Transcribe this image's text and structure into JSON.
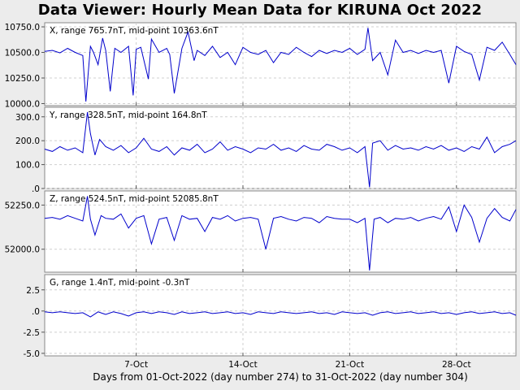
{
  "title": "Data Viewer:  Hourly Mean Data for KIRUNA Oct 2022",
  "xlabel": "Days from 01-Oct-2022 (day number 274) to 31-Oct-2022 (day number 304)",
  "colors": {
    "trace": "#0000cc",
    "background": "#ececec",
    "plot": "#ffffff",
    "grid": "#cfcfcf"
  },
  "chart_data": {
    "type": "line",
    "x_unit": "day of October 2022",
    "x_range": [
      1,
      31.9
    ],
    "x_ticks": [
      {
        "day": 7,
        "label": "7-Oct"
      },
      {
        "day": 14,
        "label": "14-Oct"
      },
      {
        "day": 21,
        "label": "21-Oct"
      },
      {
        "day": 28,
        "label": "28-Oct"
      }
    ],
    "grid": true,
    "panels": [
      {
        "name": "X",
        "label": "X, range 765.7nT, mid-point 10363.6nT",
        "ylim": [
          9980,
          10790
        ],
        "yticks": [
          {
            "v": 10000,
            "label": "10000.0"
          },
          {
            "v": 10250,
            "label": "10250.0"
          },
          {
            "v": 10500,
            "label": "10500.0"
          },
          {
            "v": 10750,
            "label": "10750.0"
          }
        ],
        "x": [
          1,
          1.5,
          2,
          2.5,
          3,
          3.5,
          3.7,
          4,
          4.2,
          4.5,
          4.8,
          5,
          5.3,
          5.6,
          6,
          6.5,
          6.8,
          7,
          7.3,
          7.8,
          8,
          8.5,
          9,
          9.2,
          9.5,
          10,
          10.4,
          10.8,
          11,
          11.5,
          12,
          12.5,
          13,
          13.5,
          14,
          14.5,
          15,
          15.5,
          16,
          16.5,
          17,
          17.5,
          18,
          18.5,
          19,
          19.5,
          20,
          20.5,
          21,
          21.5,
          22,
          22.2,
          22.5,
          23,
          23.5,
          24,
          24.5,
          25,
          25.5,
          26,
          26.5,
          27,
          27.5,
          28,
          28.5,
          29,
          29.5,
          30,
          30.5,
          31,
          31.5,
          31.9
        ],
        "values": [
          10510,
          10520,
          10495,
          10540,
          10500,
          10470,
          10020,
          10560,
          10500,
          10380,
          10640,
          10520,
          10120,
          10540,
          10500,
          10560,
          10080,
          10530,
          10550,
          10240,
          10630,
          10500,
          10540,
          10480,
          10100,
          10540,
          10700,
          10420,
          10520,
          10470,
          10560,
          10450,
          10500,
          10380,
          10550,
          10500,
          10480,
          10520,
          10400,
          10500,
          10480,
          10550,
          10500,
          10460,
          10520,
          10490,
          10520,
          10500,
          10540,
          10480,
          10530,
          10740,
          10420,
          10500,
          10280,
          10620,
          10500,
          10520,
          10490,
          10520,
          10500,
          10520,
          10200,
          10560,
          10510,
          10480,
          10230,
          10550,
          10520,
          10600,
          10480,
          10380
        ]
      },
      {
        "name": "Y",
        "label": "Y, range 328.5nT, mid-point 164.8nT",
        "ylim": [
          0,
          340
        ],
        "yticks": [
          {
            "v": 0,
            "label": ".0"
          },
          {
            "v": 100,
            "label": "100.0"
          },
          {
            "v": 200,
            "label": "200.0"
          },
          {
            "v": 300,
            "label": "300.0"
          }
        ],
        "x": [
          1,
          1.5,
          2,
          2.5,
          3,
          3.5,
          3.8,
          4,
          4.3,
          4.6,
          5,
          5.5,
          6,
          6.5,
          7,
          7.5,
          8,
          8.5,
          9,
          9.5,
          10,
          10.5,
          11,
          11.5,
          12,
          12.5,
          13,
          13.5,
          14,
          14.5,
          15,
          15.5,
          16,
          16.5,
          17,
          17.5,
          18,
          18.5,
          19,
          19.5,
          20,
          20.5,
          21,
          21.5,
          22,
          22.3,
          22.5,
          23,
          23.5,
          24,
          24.5,
          25,
          25.5,
          26,
          26.5,
          27,
          27.5,
          28,
          28.5,
          29,
          29.5,
          30,
          30.5,
          31,
          31.5,
          31.9
        ],
        "values": [
          165,
          155,
          175,
          160,
          170,
          150,
          320,
          230,
          140,
          205,
          175,
          160,
          180,
          150,
          170,
          210,
          165,
          155,
          175,
          140,
          170,
          160,
          185,
          150,
          165,
          195,
          160,
          175,
          165,
          150,
          170,
          165,
          185,
          160,
          170,
          155,
          180,
          165,
          160,
          185,
          175,
          160,
          170,
          150,
          175,
          5,
          190,
          200,
          160,
          180,
          165,
          170,
          160,
          175,
          165,
          180,
          160,
          170,
          155,
          175,
          165,
          215,
          150,
          175,
          185,
          200
        ]
      },
      {
        "name": "Z",
        "label": "Z, range 524.5nT, mid-point 52085.8nT",
        "ylim": [
          51870,
          52330
        ],
        "yticks": [
          {
            "v": 52000,
            "label": "52000.0"
          },
          {
            "v": 52250,
            "label": "52250.0"
          }
        ],
        "x": [
          1,
          1.5,
          2,
          2.5,
          3,
          3.5,
          3.8,
          4,
          4.3,
          4.7,
          5,
          5.5,
          6,
          6.5,
          7,
          7.5,
          8,
          8.5,
          9,
          9.5,
          10,
          10.5,
          11,
          11.5,
          12,
          12.5,
          13,
          13.5,
          14,
          14.5,
          15,
          15.5,
          16,
          16.5,
          17,
          17.5,
          18,
          18.5,
          19,
          19.5,
          20,
          20.5,
          21,
          21.5,
          22,
          22.3,
          22.6,
          23,
          23.5,
          24,
          24.5,
          25,
          25.5,
          26,
          26.5,
          27,
          27.5,
          28,
          28.5,
          29,
          29.5,
          30,
          30.5,
          31,
          31.5,
          31.9
        ],
        "values": [
          52175,
          52180,
          52170,
          52190,
          52175,
          52160,
          52300,
          52170,
          52080,
          52190,
          52175,
          52170,
          52200,
          52120,
          52175,
          52190,
          52030,
          52170,
          52180,
          52050,
          52190,
          52170,
          52175,
          52100,
          52180,
          52170,
          52190,
          52160,
          52175,
          52180,
          52170,
          52000,
          52175,
          52185,
          52170,
          52160,
          52180,
          52175,
          52150,
          52185,
          52175,
          52170,
          52170,
          52150,
          52175,
          51880,
          52170,
          52180,
          52150,
          52175,
          52170,
          52180,
          52160,
          52175,
          52185,
          52170,
          52240,
          52100,
          52250,
          52180,
          52040,
          52175,
          52230,
          52180,
          52160,
          52225
        ]
      },
      {
        "name": "G",
        "label": "G, range 1.4nT, mid-point -0.3nT",
        "ylim": [
          -5.3,
          4.3
        ],
        "yticks": [
          {
            "v": -5,
            "label": "-5.0"
          },
          {
            "v": -2.5,
            "label": "-2.5"
          },
          {
            "v": 0,
            "label": ".0"
          },
          {
            "v": 2.5,
            "label": "2.5"
          }
        ],
        "x": [
          1,
          1.5,
          2,
          2.5,
          3,
          3.5,
          4,
          4.5,
          5,
          5.5,
          6,
          6.5,
          7,
          7.5,
          8,
          8.5,
          9,
          9.5,
          10,
          10.5,
          11,
          11.5,
          12,
          12.5,
          13,
          13.5,
          14,
          14.5,
          15,
          15.5,
          16,
          16.5,
          17,
          17.5,
          18,
          18.5,
          19,
          19.5,
          20,
          20.5,
          21,
          21.5,
          22,
          22.5,
          23,
          23.5,
          24,
          24.5,
          25,
          25.5,
          26,
          26.5,
          27,
          27.5,
          28,
          28.5,
          29,
          29.5,
          30,
          30.5,
          31,
          31.5,
          31.9
        ],
        "values": [
          -0.1,
          -0.2,
          -0.1,
          -0.2,
          -0.3,
          -0.2,
          -0.7,
          -0.1,
          -0.4,
          -0.1,
          -0.3,
          -0.6,
          -0.2,
          -0.1,
          -0.3,
          -0.1,
          -0.2,
          -0.4,
          -0.1,
          -0.3,
          -0.2,
          -0.1,
          -0.3,
          -0.2,
          -0.1,
          -0.3,
          -0.2,
          -0.4,
          -0.1,
          -0.2,
          -0.3,
          -0.1,
          -0.2,
          -0.3,
          -0.2,
          -0.1,
          -0.3,
          -0.2,
          -0.4,
          -0.1,
          -0.2,
          -0.3,
          -0.2,
          -0.5,
          -0.2,
          -0.1,
          -0.3,
          -0.2,
          -0.1,
          -0.3,
          -0.2,
          -0.1,
          -0.3,
          -0.2,
          -0.4,
          -0.2,
          -0.1,
          -0.3,
          -0.2,
          -0.1,
          -0.3,
          -0.2,
          -0.5
        ]
      }
    ]
  }
}
